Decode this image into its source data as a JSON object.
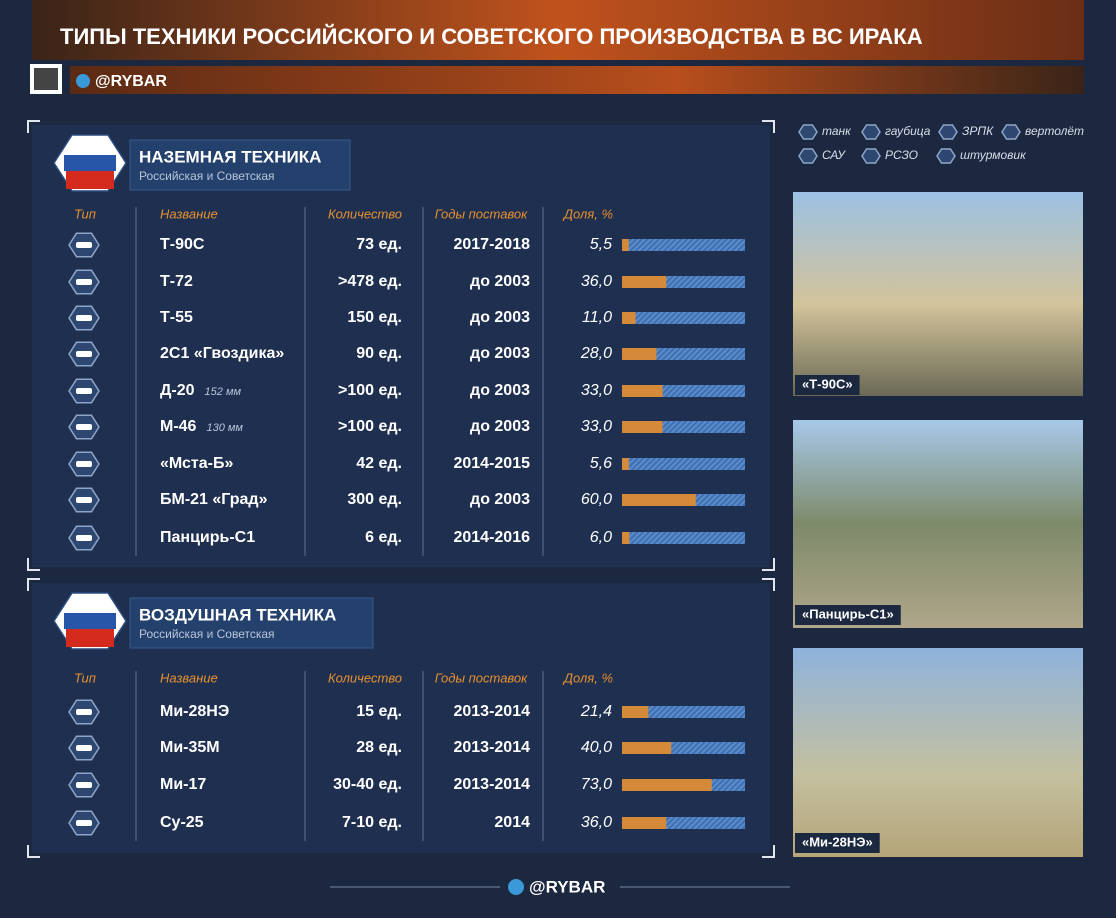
{
  "header": {
    "title": "ТИПЫ ТЕХНИКИ РОССИЙСКОГО И СОВЕТСКОГО ПРОИЗВОДСТВА В ВС ИРАКА",
    "brand": "@RYBAR"
  },
  "legend": [
    "танк",
    "гаубица",
    "ЗРПК",
    "вертолёт",
    "САУ",
    "РСЗО",
    "штурмовик"
  ],
  "ground": {
    "title": "НАЗЕМНАЯ ТЕХНИКА",
    "subtitle": "Российская и Советская",
    "columns": [
      "Тип",
      "Название",
      "Количество",
      "Годы поставок",
      "Доля, %"
    ],
    "rows": [
      {
        "name": "Т-90С",
        "quantity": "73 ед.",
        "years": "2017-2018",
        "share": {
          "value": 5.5,
          "label": "5,5"
        }
      },
      {
        "name": "Т-72",
        "quantity": ">478 ед.",
        "years": "до 2003",
        "share": {
          "value": 36.0,
          "label": "36,0"
        }
      },
      {
        "name": "Т-55",
        "quantity": "150 ед.",
        "years": "до 2003",
        "share": {
          "value": 11.0,
          "label": "11,0"
        }
      },
      {
        "name": "2С1 «Гвоздика»",
        "quantity": "90 ед.",
        "years": "до 2003",
        "share": {
          "value": 28.0,
          "label": "28,0"
        }
      },
      {
        "name": "Д-20",
        "caliber": "152 мм",
        "quantity": ">100 ед.",
        "years": "до 2003",
        "share": {
          "value": 33.0,
          "label": "33,0"
        }
      },
      {
        "name": "М-46",
        "caliber": "130 мм",
        "quantity": ">100 ед.",
        "years": "до 2003",
        "share": {
          "value": 33.0,
          "label": "33,0"
        }
      },
      {
        "name": "«Мста-Б»",
        "quantity": "42 ед.",
        "years": "2014-2015",
        "share": {
          "value": 5.6,
          "label": "5,6"
        }
      },
      {
        "name": "БМ-21 «Град»",
        "quantity": "300 ед.",
        "years": "до 2003",
        "share": {
          "value": 60.0,
          "label": "60,0"
        }
      },
      {
        "name": "Панцирь-С1",
        "quantity": "6 ед.",
        "years": "2014-2016",
        "share": {
          "value": 6.0,
          "label": "6,0"
        }
      }
    ]
  },
  "air": {
    "title": "ВОЗДУШНАЯ ТЕХНИКА",
    "subtitle": "Российская и Советская",
    "columns": [
      "Тип",
      "Название",
      "Количество",
      "Годы поставок",
      "Доля, %"
    ],
    "rows": [
      {
        "name": "Ми-28НЭ",
        "quantity": "15 ед.",
        "years": "2013-2014",
        "share": {
          "value": 21.4,
          "label": "21,4"
        }
      },
      {
        "name": "Ми-35М",
        "quantity": "28 ед.",
        "years": "2013-2014",
        "share": {
          "value": 40.0,
          "label": "40,0"
        }
      },
      {
        "name": "Ми-17",
        "quantity": "30-40 ед.",
        "years": "2013-2014",
        "share": {
          "value": 73.0,
          "label": "73,0"
        }
      },
      {
        "name": "Су-25",
        "quantity": "7-10 ед.",
        "years": "2014",
        "share": {
          "value": 36.0,
          "label": "36,0"
        }
      }
    ]
  },
  "photos": [
    "«Т-90С»",
    "«Панцирь-С1»",
    "«Ми-28НЭ»"
  ],
  "footer": {
    "brand": "@RYBAR"
  }
}
